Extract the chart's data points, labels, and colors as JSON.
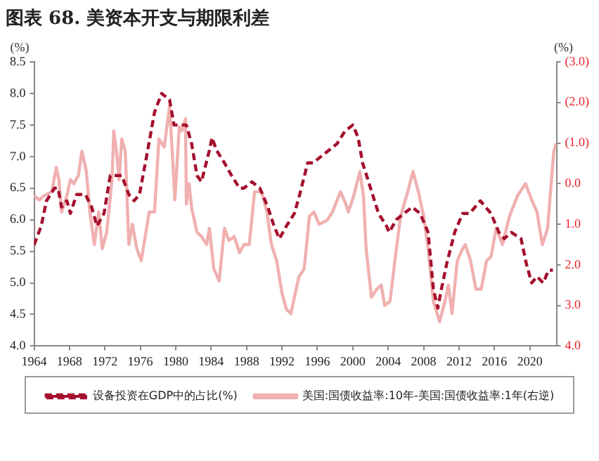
{
  "chart_data": {
    "type": "line",
    "title": "图表 68. 美资本开支与期限利差",
    "ylabel": "(%)",
    "y2label": "(%)",
    "xlim": [
      1964,
      2023
    ],
    "xticks": [
      1964,
      1968,
      1972,
      1976,
      1980,
      1984,
      1988,
      1992,
      1996,
      2000,
      2004,
      2008,
      2012,
      2016,
      2020
    ],
    "ylim": [
      4,
      8.5
    ],
    "yticks": [
      {
        "value": 4,
        "label": "4.0"
      },
      {
        "value": 4.5,
        "label": "4.5"
      },
      {
        "value": 5,
        "label": "5.0"
      },
      {
        "value": 5.5,
        "label": "5.5"
      },
      {
        "value": 6,
        "label": "6.0"
      },
      {
        "value": 6.5,
        "label": "6.5"
      },
      {
        "value": 7,
        "label": "7.0"
      },
      {
        "value": 7.5,
        "label": "7.5"
      },
      {
        "value": 8,
        "label": "8.0"
      },
      {
        "value": 8.5,
        "label": "8.5"
      }
    ],
    "y2lim": [
      4,
      -3
    ],
    "y2ticks": [
      {
        "value": -3,
        "label": "(3.0)"
      },
      {
        "value": -2,
        "label": "(2.0)"
      },
      {
        "value": -1,
        "label": "(1.0)"
      },
      {
        "value": 0,
        "label": "0.0"
      },
      {
        "value": 1,
        "label": "1.0"
      },
      {
        "value": 2,
        "label": "2.0"
      },
      {
        "value": 3,
        "label": "3.0"
      },
      {
        "value": 4,
        "label": "4.0"
      }
    ],
    "grid": false,
    "legend": "bottom",
    "marker": "none",
    "series": [
      {
        "name": "设备投资在GDP中的占比(%)",
        "color": "#a50f2d",
        "line_style": "dashed",
        "x": [
          1964,
          1964.8,
          1965.4,
          1966.3,
          1966.7,
          1967.1,
          1967.7,
          1968.1,
          1968.8,
          1969.8,
          1970.5,
          1971.1,
          1971.9,
          1972.6,
          1973.9,
          1974.7,
          1975.3,
          1975.9,
          1976.7,
          1977.6,
          1978.4,
          1979.3,
          1979.8,
          1980.7,
          1981.2,
          1981.8,
          1982.4,
          1982.9,
          1983.8,
          1984.1,
          1984.6,
          1985.5,
          1986.3,
          1987.2,
          1987.7,
          1988.6,
          1989.5,
          1990.4,
          1991.1,
          1991.7,
          1992.5,
          1993.4,
          1994,
          1994.9,
          1995.5,
          1996.4,
          1997.3,
          1998.2,
          1999.1,
          2000,
          2000.6,
          2001.1,
          2002,
          2002.9,
          2003.8,
          2004.1,
          2004.9,
          2005.8,
          2006.7,
          2007.6,
          2008.5,
          2009.1,
          2009.6,
          2010,
          2010.6,
          2011.5,
          2012.4,
          2013.2,
          2014.4,
          2015.6,
          2016.5,
          2017.1,
          2017.9,
          2019,
          2019.6,
          2020.2,
          2020.8,
          2021.5,
          2022.1,
          2022.6
        ],
        "values": [
          5.6,
          5.9,
          6.3,
          6.5,
          6.5,
          6.2,
          6.3,
          6.1,
          6.4,
          6.4,
          6.2,
          5.9,
          6.1,
          6.7,
          6.7,
          6.4,
          6.3,
          6.4,
          7.0,
          7.7,
          8.0,
          7.9,
          7.5,
          7.5,
          7.5,
          7.2,
          6.7,
          6.6,
          7.1,
          7.3,
          7.1,
          6.9,
          6.7,
          6.5,
          6.5,
          6.6,
          6.5,
          6.2,
          5.9,
          5.7,
          5.9,
          6.1,
          6.4,
          6.9,
          6.9,
          7.0,
          7.1,
          7.2,
          7.4,
          7.5,
          7.3,
          6.9,
          6.5,
          6.1,
          5.9,
          5.8,
          6.0,
          6.1,
          6.2,
          6.1,
          5.8,
          4.9,
          4.6,
          4.9,
          5.3,
          5.8,
          6.1,
          6.1,
          6.3,
          6.1,
          5.8,
          5.7,
          5.8,
          5.7,
          5.3,
          5.0,
          5.1,
          5.0,
          5.2,
          5.2
        ]
      },
      {
        "name": "美国:国债收益率:10年-美国:国债收益率:1年(右逆)",
        "color": "#f0b0b0",
        "line_style": "solid",
        "axis": "y2",
        "x": [
          1964,
          1964.6,
          1965.1,
          1966,
          1966.5,
          1966.8,
          1967.1,
          1967.7,
          1968.1,
          1968.5,
          1969,
          1969.4,
          1969.9,
          1970.3,
          1970.8,
          1971.3,
          1971.7,
          1972.2,
          1972.8,
          1973,
          1973.3,
          1973.6,
          1973.9,
          1974.3,
          1974.7,
          1975.1,
          1975.6,
          1976.1,
          1977,
          1977.6,
          1978.1,
          1978.7,
          1979.3,
          1979.6,
          1979.9,
          1980.4,
          1980.7,
          1981.1,
          1981.2,
          1981.5,
          1981.8,
          1982.4,
          1982.9,
          1983.5,
          1983.8,
          1984.3,
          1984.9,
          1985.5,
          1986,
          1986.6,
          1987.2,
          1987.7,
          1988.3,
          1988.9,
          1989.7,
          1990.3,
          1990.8,
          1991.4,
          1992,
          1992.5,
          1993,
          1993.6,
          1993.9,
          1994.5,
          1995.1,
          1995.6,
          1996.2,
          1997.1,
          1997.7,
          1998.6,
          1999.2,
          1999.5,
          2000.1,
          2000.8,
          2001.2,
          2001.5,
          2002.1,
          2002.7,
          2003.2,
          2003.6,
          2004.2,
          2004.8,
          2005.4,
          2006.2,
          2006.8,
          2007.4,
          2008,
          2008.5,
          2009.1,
          2009.8,
          2010.4,
          2010.8,
          2011.2,
          2011.8,
          2012.4,
          2012.7,
          2013.3,
          2013.9,
          2014.5,
          2015.1,
          2015.6,
          2016.2,
          2016.9,
          2017.7,
          2018.6,
          2019.5,
          2020.2,
          2020.8,
          2021.4,
          2022,
          2022.4,
          2022.7,
          2023
        ],
        "values": [
          0.3,
          0.4,
          0.3,
          0.2,
          -0.4,
          -0.1,
          0.7,
          0.3,
          -0.1,
          0.0,
          -0.2,
          -0.8,
          -0.3,
          0.7,
          1.5,
          0.7,
          1.6,
          1.2,
          -0.1,
          -1.3,
          -0.8,
          -0.1,
          -1.1,
          -0.8,
          1.5,
          1.0,
          1.6,
          1.9,
          0.7,
          0.7,
          -1.1,
          -0.9,
          -1.9,
          -0.8,
          0.4,
          -1.4,
          -1.3,
          -1.6,
          0.5,
          0.0,
          0.6,
          1.2,
          1.3,
          1.5,
          1.1,
          2.1,
          2.4,
          1.1,
          1.4,
          1.3,
          1.7,
          1.5,
          1.5,
          0.2,
          0.2,
          0.7,
          1.5,
          1.9,
          2.7,
          3.1,
          3.2,
          2.6,
          2.3,
          2.1,
          0.8,
          0.7,
          1.0,
          0.9,
          0.7,
          0.2,
          0.5,
          0.7,
          0.3,
          -0.3,
          0.3,
          1.6,
          2.8,
          2.6,
          2.5,
          3.0,
          2.9,
          1.8,
          0.8,
          0.2,
          -0.3,
          0.2,
          0.8,
          1.6,
          2.9,
          3.4,
          2.9,
          2.5,
          3.2,
          1.9,
          1.6,
          1.5,
          1.9,
          2.6,
          2.6,
          1.9,
          1.8,
          1.1,
          1.5,
          0.8,
          0.3,
          0.0,
          0.4,
          0.7,
          1.5,
          1.1,
          0.0,
          -0.8,
          -1.0
        ]
      }
    ]
  }
}
